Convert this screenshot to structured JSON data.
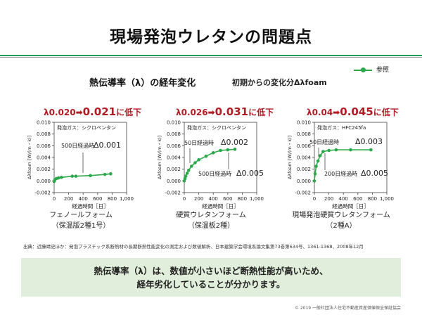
{
  "title": "現場発泡ウレタンの問題点",
  "subtitle": "熱伝導率（λ）の経年変化",
  "subtitle2": "初期からの変化分Δλfoam",
  "legend_label": "参照",
  "colors": {
    "series": "#2aa84a",
    "headline": "#b01c24",
    "accent_rule": "#1e9a5a",
    "box": "#e1eedb"
  },
  "source": "出典：近藤靖史ほか：発泡プラスチック系断熱材の長期断熱性能変化の測定および数値解析、日本建築学会環境系論文集第73巻第634号、1361-1368、2008年12月",
  "conclusion_line1": "熱伝導率（λ）は、数値が小さいほど断熱性能が高いため、",
  "conclusion_line2": "経年劣化していることが分かります。",
  "copyright": "© 2019 一般社団法人住宅不動産資産価値保全保証協会",
  "chart_data": [
    {
      "type": "line",
      "headline_from": "λ0.020",
      "arrow": "➡",
      "headline_to": "0.021",
      "headline_suffix": "に低下",
      "caption_line1": "フェノールフォーム",
      "caption_line2": "（保温版2種1号）",
      "gas_label": "発泡ガス：シクロペンタン",
      "annotations": [
        {
          "time": "500日経過時",
          "value": "Δ0.001"
        }
      ],
      "xlabel": "経過時間［日］",
      "ylabel": "Δλfoam [W/(m・k)]",
      "xlim": [
        0,
        1000
      ],
      "ylim": [
        -0.002,
        0.01
      ],
      "xticks": [
        "0",
        "200",
        "400",
        "600",
        "800",
        "1,000"
      ],
      "yticks": [
        "-0.002",
        "0.000",
        "0.002",
        "0.004",
        "0.006",
        "0.008",
        "0.010"
      ],
      "series": [
        {
          "x": [
            0,
            10,
            30,
            60,
            100,
            250,
            300,
            500,
            700,
            780
          ],
          "y": [
            -0.0001,
            0.0002,
            0.0004,
            0.0005,
            0.0006,
            0.0008,
            0.0008,
            0.0009,
            0.0011,
            0.0012
          ]
        }
      ]
    },
    {
      "type": "line",
      "headline_from": "λ0.026",
      "arrow": "➡",
      "headline_to": "0.031",
      "headline_suffix": "に低下",
      "caption_line1": "硬質ウレタンフォーム",
      "caption_line2": "（保温板2種）",
      "gas_label": "発泡ガス：シクロペンタン",
      "annotations": [
        {
          "time": "50日経過時",
          "value": "Δ0.002"
        },
        {
          "time": "500日経過時",
          "value": "Δ0.005"
        }
      ],
      "xlabel": "経過時間［日］",
      "ylabel": "Δλfoam [W/(m・k)]",
      "xlim": [
        0,
        1000
      ],
      "ylim": [
        -0.002,
        0.01
      ],
      "xticks": [
        "0",
        "200",
        "400",
        "600",
        "800",
        "1,000"
      ],
      "yticks": [
        "-0.002",
        "0.000",
        "0.002",
        "0.004",
        "0.006",
        "0.008",
        "0.010"
      ],
      "series": [
        {
          "x": [
            0,
            10,
            20,
            40,
            60,
            100,
            150,
            200,
            300,
            400,
            500,
            600,
            700
          ],
          "y": [
            0.0,
            0.0004,
            0.0008,
            0.0013,
            0.0018,
            0.0025,
            0.0031,
            0.0036,
            0.0042,
            0.0048,
            0.0052,
            0.0053,
            0.0054
          ]
        }
      ]
    },
    {
      "type": "line",
      "headline_from": "λ0.04",
      "arrow": "➡",
      "headline_to": "0.045",
      "headline_suffix": "に低下",
      "caption_line1": "現場発泡硬質ウレタンフォーム",
      "caption_line2": "（2種A）",
      "gas_label": "発泡ガス：HFC245fa",
      "annotations": [
        {
          "time": "50日経過時",
          "value": "Δ0.003"
        },
        {
          "time": "200日経過時",
          "value": "Δ0.005"
        }
      ],
      "xlabel": "経過時間［日］",
      "ylabel": "Δλfoam [W/(m・k)]",
      "xlim": [
        0,
        1000
      ],
      "ylim": [
        -0.002,
        0.01
      ],
      "xticks": [
        "0",
        "200",
        "400",
        "600",
        "800",
        "1,000"
      ],
      "yticks": [
        "-0.002",
        "0.000",
        "0.002",
        "0.004",
        "0.006",
        "0.008",
        "0.010"
      ],
      "series": [
        {
          "x": [
            0,
            10,
            25,
            50,
            80,
            120,
            200,
            300,
            500,
            780
          ],
          "y": [
            0.0,
            0.0012,
            0.0025,
            0.0034,
            0.0043,
            0.005,
            0.0052,
            0.0053,
            0.0053,
            0.0053
          ]
        }
      ]
    }
  ]
}
